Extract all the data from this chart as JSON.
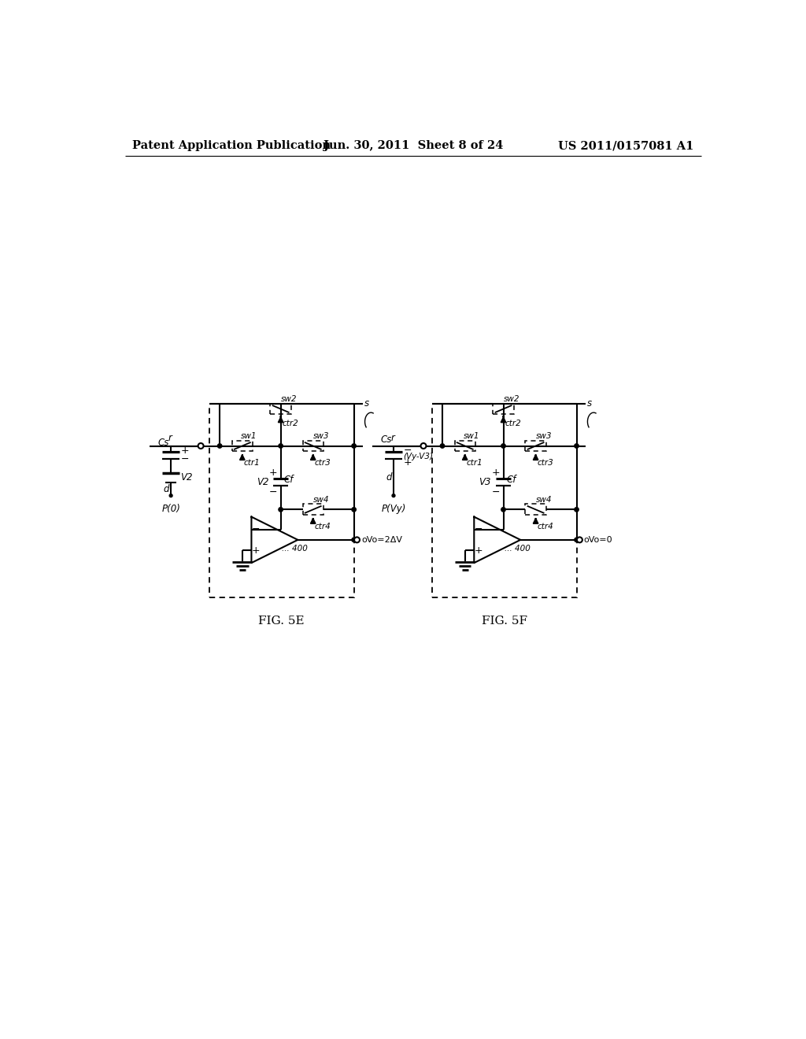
{
  "header_left": "Patent Application Publication",
  "header_center": "Jun. 30, 2011  Sheet 8 of 24",
  "header_right": "US 2011/0157081 A1",
  "fig5e_label": "FIG. 5E",
  "fig5f_label": "FIG. 5F",
  "background": "#ffffff",
  "line_color": "#000000",
  "text_color": "#000000"
}
